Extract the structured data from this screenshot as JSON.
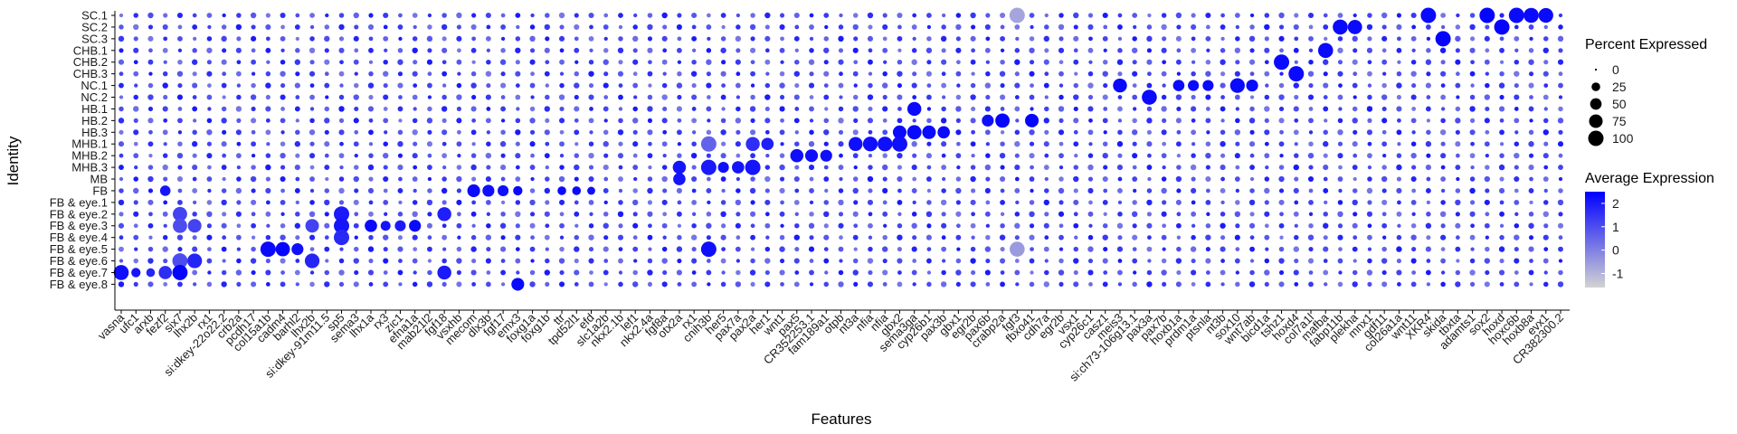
{
  "chart_data": {
    "type": "dotplot",
    "xlabel": "Features",
    "ylabel": "Identity",
    "rows": [
      "SC.1",
      "SC.2",
      "SC.3",
      "CHB.1",
      "CHB.2",
      "CHB.3",
      "NC.1",
      "NC.2",
      "HB.1",
      "HB.2",
      "HB.3",
      "MHB.1",
      "MHB.2",
      "MHB.3",
      "MB",
      "FB",
      "FB & eye.1",
      "FB & eye.2",
      "FB & eye.3",
      "FB & eye.4",
      "FB & eye.5",
      "FB & eye.6",
      "FB & eye.7",
      "FB & eye.8"
    ],
    "columns": [
      "vasna",
      "ufc1",
      "arxb",
      "fezf2",
      "six7",
      "lhx2b",
      "rx1",
      "si:dkey-22o22.2",
      "crb2a",
      "pcdh17",
      "col15a1b",
      "cadm4",
      "barhl2",
      "lhx2b",
      "si:dkey-91m11.5",
      "sp5",
      "sema3",
      "lhx1a",
      "rx3",
      "zic1",
      "efna1a",
      "mab21l2",
      "fgf18",
      "vsxhb",
      "mecom",
      "dlx3b",
      "fgf17",
      "emx3",
      "foxg1a",
      "foxg1b",
      "ttr",
      "tpd52l1",
      "efd",
      "slc1a2b",
      "nkx2.1b",
      "lef1",
      "nkx2.4a",
      "fgf8a",
      "otx2a",
      "rx1",
      "cnih3b",
      "her5",
      "pax7a",
      "pax2a",
      "her1",
      "wnt1",
      "pax5",
      "CR352253.1",
      "fam189a1",
      "otpb",
      "nt3a",
      "nfia",
      "nfia",
      "gbx2",
      "sema3ga",
      "cyp26b1",
      "pax3b",
      "gbx1",
      "egr2b",
      "pax6b",
      "crabp2a",
      "fgf3",
      "fbxo41",
      "cdh7a",
      "egr2b",
      "vsx1",
      "cyp26c1",
      "casz1",
      "meis3",
      "si:ch73-106g13.1",
      "pax3a",
      "pax7b",
      "hoxb1a",
      "prdm1a",
      "ptsnla",
      "nt3b",
      "sox10",
      "wnt7ab",
      "bicd1a",
      "tshz1",
      "hoxd4",
      "col7a1l",
      "mafba",
      "fabp11b",
      "plekha",
      "mnx1",
      "gdf11",
      "col26a1a",
      "wnt11",
      "XKR4",
      "skida",
      "tbxta",
      "adamts1",
      "sox2",
      "hoxd",
      "hoxc6b",
      "hoxb8a",
      "evx1",
      "CR382300.2"
    ],
    "points": [
      {
        "row": "FB & eye.7",
        "col": "vasna",
        "pct": 95,
        "avg": 2.2
      },
      {
        "row": "FB & eye.7",
        "col": "ufc1",
        "pct": 30,
        "avg": 2.1
      },
      {
        "row": "FB & eye.7",
        "col": "arxb",
        "pct": 25,
        "avg": 1.8
      },
      {
        "row": "FB",
        "col": "fezf2",
        "pct": 40,
        "avg": 2.1
      },
      {
        "row": "FB & eye.7",
        "col": "fezf2",
        "pct": 70,
        "avg": 1.6
      },
      {
        "row": "FB & eye.2",
        "col": "six7",
        "pct": 85,
        "avg": 1.2
      },
      {
        "row": "FB & eye.3",
        "col": "six7",
        "pct": 85,
        "avg": 1.0
      },
      {
        "row": "FB & eye.6",
        "col": "six7",
        "pct": 98,
        "avg": 1.0
      },
      {
        "row": "FB & eye.7",
        "col": "six7",
        "pct": 98,
        "avg": 2.4
      },
      {
        "row": "FB & eye.3",
        "col": "lhx2b",
        "pct": 75,
        "avg": 1.2
      },
      {
        "row": "FB & eye.6",
        "col": "lhx2b",
        "pct": 90,
        "avg": 1.8
      },
      {
        "row": "FB & eye.5",
        "col": "col15a1b",
        "pct": 100,
        "avg": 2.3
      },
      {
        "row": "FB & eye.5",
        "col": "cadm4",
        "pct": 85,
        "avg": 2.4
      },
      {
        "row": "FB & eye.5",
        "col": "barhl2",
        "pct": 55,
        "avg": 2.2
      },
      {
        "row": "FB & eye.2",
        "col": "sp5",
        "pct": 100,
        "avg": 2.0
      },
      {
        "row": "FB & eye.3",
        "col": "sp5",
        "pct": 100,
        "avg": 2.1
      },
      {
        "row": "FB & eye.4",
        "col": "sp5",
        "pct": 100,
        "avg": 1.7
      },
      {
        "row": "FB & eye.3",
        "col": "lhx1a",
        "pct": 60,
        "avg": 2.3
      },
      {
        "row": "FB & eye.3",
        "col": "rx3",
        "pct": 35,
        "avg": 2.1
      },
      {
        "row": "FB & eye.3",
        "col": "zic1",
        "pct": 45,
        "avg": 2.0
      },
      {
        "row": "FB & eye.3",
        "col": "efna1a",
        "pct": 55,
        "avg": 2.3
      },
      {
        "row": "FB & eye.2",
        "col": "fgf18",
        "pct": 80,
        "avg": 1.9
      },
      {
        "row": "FB & eye.7",
        "col": "fgf18",
        "pct": 80,
        "avg": 2.0
      },
      {
        "row": "FB",
        "col": "mecom",
        "pct": 65,
        "avg": 2.3
      },
      {
        "row": "FB",
        "col": "dlx3b",
        "pct": 55,
        "avg": 2.2
      },
      {
        "row": "FB",
        "col": "fgf17",
        "pct": 45,
        "avg": 2.2
      },
      {
        "row": "FB",
        "col": "emx3",
        "pct": 30,
        "avg": 2.3
      },
      {
        "row": "FB & eye.8",
        "col": "emx3",
        "pct": 65,
        "avg": 2.3
      },
      {
        "row": "FB",
        "col": "ttr",
        "pct": 25,
        "avg": 2.3
      },
      {
        "row": "FB",
        "col": "tpd52l1",
        "pct": 25,
        "avg": 2.3
      },
      {
        "row": "FB",
        "col": "efd",
        "pct": 20,
        "avg": 2.2
      },
      {
        "row": "MHB.3",
        "col": "otx2a",
        "pct": 70,
        "avg": 2.1
      },
      {
        "row": "MB",
        "col": "otx2a",
        "pct": 60,
        "avg": 2.1
      },
      {
        "row": "FB & eye.5",
        "col": "cnih3b",
        "pct": 100,
        "avg": 2.2
      },
      {
        "row": "MHB.3",
        "col": "cnih3b",
        "pct": 100,
        "avg": 2.0
      },
      {
        "row": "MHB.1",
        "col": "cnih3b",
        "pct": 100,
        "avg": 0.6
      },
      {
        "row": "MHB.3",
        "col": "her5",
        "pct": 45,
        "avg": 2.2
      },
      {
        "row": "MHB.3",
        "col": "pax7a",
        "pct": 60,
        "avg": 2.1
      },
      {
        "row": "MHB.3",
        "col": "pax2a",
        "pct": 100,
        "avg": 2.1
      },
      {
        "row": "MHB.1",
        "col": "pax2a",
        "pct": 80,
        "avg": 1.6
      },
      {
        "row": "MHB.1",
        "col": "her1",
        "pct": 60,
        "avg": 1.9
      },
      {
        "row": "MHB.2",
        "col": "pax5",
        "pct": 70,
        "avg": 2.2
      },
      {
        "row": "MHB.2",
        "col": "CR352253.1",
        "pct": 65,
        "avg": 2.2
      },
      {
        "row": "MHB.2",
        "col": "fam189a1",
        "pct": 55,
        "avg": 2.2
      },
      {
        "row": "MHB.1",
        "col": "nt3a",
        "pct": 80,
        "avg": 2.2
      },
      {
        "row": "MHB.1",
        "col": "nfia",
        "pct": 90,
        "avg": 2.2
      },
      {
        "row": "MHB.1",
        "col": "gbx2",
        "pct": 100,
        "avg": 2.2
      },
      {
        "row": "HB.3",
        "col": "gbx2",
        "pct": 75,
        "avg": 2.3
      },
      {
        "row": "HB.3",
        "col": "sema3ga",
        "pct": 85,
        "avg": 2.3
      },
      {
        "row": "HB.1",
        "col": "sema3ga",
        "pct": 80,
        "avg": 2.3
      },
      {
        "row": "HB.3",
        "col": "cyp26b1",
        "pct": 75,
        "avg": 2.3
      },
      {
        "row": "HB.3",
        "col": "pax3b",
        "pct": 60,
        "avg": 2.3
      },
      {
        "row": "HB.2",
        "col": "pax6b",
        "pct": 55,
        "avg": 2.2
      },
      {
        "row": "HB.2",
        "col": "crabp2a",
        "pct": 85,
        "avg": 2.4
      },
      {
        "row": "HB.2",
        "col": "fbxo41",
        "pct": 75,
        "avg": 2.4
      },
      {
        "row": "SC.1",
        "col": "fgf3",
        "pct": 100,
        "avg": -0.7
      },
      {
        "row": "FB & eye.5",
        "col": "fgf3",
        "pct": 95,
        "avg": -0.5
      },
      {
        "row": "NC.2",
        "col": "pax3a",
        "pct": 95,
        "avg": 2.3
      },
      {
        "row": "NC.1",
        "col": "meis3",
        "pct": 80,
        "avg": 2.3
      },
      {
        "row": "NC.1",
        "col": "hoxb1a",
        "pct": 50,
        "avg": 2.3
      },
      {
        "row": "NC.1",
        "col": "prdm1a",
        "pct": 45,
        "avg": 2.3
      },
      {
        "row": "NC.1",
        "col": "ptsnla",
        "pct": 45,
        "avg": 2.3
      },
      {
        "row": "NC.1",
        "col": "sox10",
        "pct": 90,
        "avg": 2.3
      },
      {
        "row": "NC.1",
        "col": "wnt7ab",
        "pct": 55,
        "avg": 2.3
      },
      {
        "row": "CHB.2",
        "col": "tshz1",
        "pct": 100,
        "avg": 2.3
      },
      {
        "row": "CHB.3",
        "col": "hoxd4",
        "pct": 100,
        "avg": 2.3
      },
      {
        "row": "CHB.1",
        "col": "mafba",
        "pct": 95,
        "avg": 2.3
      },
      {
        "row": "SC.2",
        "col": "fabp11b",
        "pct": 95,
        "avg": 2.3
      },
      {
        "row": "SC.2",
        "col": "plekha",
        "pct": 85,
        "avg": 2.3
      },
      {
        "row": "SC.1",
        "col": "XKR4",
        "pct": 100,
        "avg": 2.3
      },
      {
        "row": "SC.3",
        "col": "skida",
        "pct": 100,
        "avg": 2.4
      },
      {
        "row": "SC.1",
        "col": "sox2",
        "pct": 100,
        "avg": 2.4
      },
      {
        "row": "SC.2",
        "col": "hoxd",
        "pct": 100,
        "avg": 2.4
      },
      {
        "row": "SC.1",
        "col": "hoxc6b",
        "pct": 100,
        "avg": 2.3
      },
      {
        "row": "SC.1",
        "col": "hoxb8a",
        "pct": 95,
        "avg": 2.3
      },
      {
        "row": "SC.1",
        "col": "evx1",
        "pct": 90,
        "avg": 2.3
      }
    ],
    "legend": {
      "size_title": "Percent Expressed",
      "size_values": [
        0,
        25,
        50,
        75,
        100
      ],
      "color_title": "Average Expression",
      "color_ticks": [
        2,
        1,
        0,
        -1
      ],
      "color_low": "#d3d3d3",
      "color_high": "#0000ff",
      "placement": "right"
    },
    "grid": false
  }
}
